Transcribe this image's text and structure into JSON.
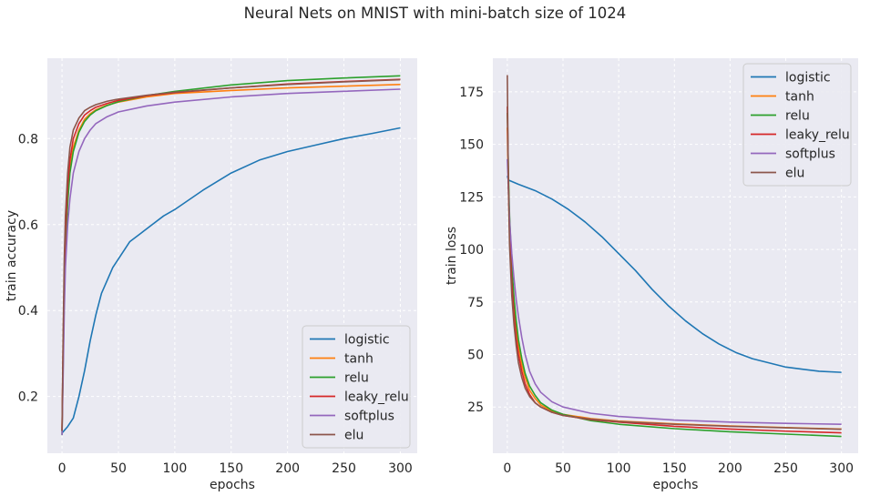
{
  "figure": {
    "title": "Neural Nets on MNIST with mini-batch size of 1024"
  },
  "colors": {
    "logistic": "#1f77b4",
    "tanh": "#ff7f0e",
    "relu": "#2ca02c",
    "leaky_relu": "#d62728",
    "softplus": "#9467bd",
    "elu": "#8c564b",
    "plot_background": "#eaeaf2",
    "grid": "#ffffff"
  },
  "chart_data": [
    {
      "type": "line",
      "title": "",
      "xlabel": "epochs",
      "ylabel": "train accuracy",
      "xlim": [
        -13,
        315
      ],
      "ylim": [
        0.068,
        0.987
      ],
      "xticks": [
        0,
        50,
        100,
        150,
        200,
        250,
        300
      ],
      "yticks": [
        0.2,
        0.4,
        0.6,
        0.8
      ],
      "ytick_labels": [
        "0.2",
        "0.4",
        "0.6",
        "0.8"
      ],
      "grid": true,
      "legend_position": "lower-right",
      "series": [
        {
          "name": "logistic",
          "x": [
            0,
            5,
            10,
            15,
            20,
            25,
            30,
            35,
            40,
            45,
            50,
            60,
            70,
            80,
            90,
            100,
            125,
            150,
            175,
            200,
            225,
            250,
            275,
            300
          ],
          "y": [
            0.115,
            0.13,
            0.15,
            0.2,
            0.26,
            0.33,
            0.39,
            0.44,
            0.47,
            0.5,
            0.52,
            0.56,
            0.58,
            0.6,
            0.62,
            0.635,
            0.68,
            0.72,
            0.75,
            0.77,
            0.785,
            0.8,
            0.812,
            0.825
          ]
        },
        {
          "name": "tanh",
          "x": [
            0,
            1,
            2,
            3,
            5,
            7,
            10,
            15,
            20,
            25,
            30,
            40,
            50,
            75,
            100,
            150,
            200,
            250,
            300
          ],
          "y": [
            0.12,
            0.3,
            0.45,
            0.55,
            0.66,
            0.73,
            0.78,
            0.82,
            0.845,
            0.858,
            0.867,
            0.878,
            0.885,
            0.897,
            0.905,
            0.912,
            0.918,
            0.922,
            0.926
          ]
        },
        {
          "name": "relu",
          "x": [
            0,
            1,
            2,
            3,
            5,
            7,
            10,
            15,
            20,
            25,
            30,
            40,
            50,
            75,
            100,
            150,
            200,
            250,
            300
          ],
          "y": [
            0.11,
            0.28,
            0.43,
            0.54,
            0.65,
            0.72,
            0.77,
            0.815,
            0.84,
            0.855,
            0.865,
            0.877,
            0.886,
            0.9,
            0.91,
            0.925,
            0.935,
            0.941,
            0.946
          ]
        },
        {
          "name": "leaky_relu",
          "x": [
            0,
            1,
            2,
            3,
            5,
            7,
            10,
            15,
            20,
            25,
            30,
            40,
            50,
            75,
            100,
            150,
            200,
            250,
            300
          ],
          "y": [
            0.12,
            0.32,
            0.48,
            0.58,
            0.69,
            0.75,
            0.8,
            0.835,
            0.855,
            0.865,
            0.873,
            0.882,
            0.889,
            0.9,
            0.907,
            0.918,
            0.927,
            0.933,
            0.938
          ]
        },
        {
          "name": "softplus",
          "x": [
            0,
            1,
            2,
            3,
            5,
            7,
            10,
            15,
            20,
            25,
            30,
            40,
            50,
            75,
            100,
            150,
            200,
            250,
            300
          ],
          "y": [
            0.11,
            0.25,
            0.4,
            0.5,
            0.6,
            0.66,
            0.72,
            0.77,
            0.8,
            0.82,
            0.835,
            0.851,
            0.862,
            0.876,
            0.885,
            0.897,
            0.905,
            0.91,
            0.915
          ]
        },
        {
          "name": "elu",
          "x": [
            0,
            1,
            2,
            3,
            5,
            7,
            10,
            15,
            20,
            25,
            30,
            40,
            50,
            75,
            100,
            150,
            200,
            250,
            300
          ],
          "y": [
            0.12,
            0.35,
            0.52,
            0.62,
            0.72,
            0.78,
            0.82,
            0.848,
            0.865,
            0.873,
            0.879,
            0.887,
            0.892,
            0.901,
            0.908,
            0.918,
            0.926,
            0.932,
            0.937
          ]
        }
      ]
    },
    {
      "type": "line",
      "title": "",
      "xlabel": "epochs",
      "ylabel": "train loss",
      "xlim": [
        -13,
        315
      ],
      "ylim": [
        3,
        191
      ],
      "xticks": [
        0,
        50,
        100,
        150,
        200,
        250,
        300
      ],
      "yticks": [
        25,
        50,
        75,
        100,
        125,
        150,
        175
      ],
      "ytick_labels": [
        "25",
        "50",
        "75",
        "100",
        "125",
        "150",
        "175"
      ],
      "grid": true,
      "legend_position": "upper-right",
      "series": [
        {
          "name": "logistic",
          "x": [
            0,
            1,
            10,
            25,
            40,
            55,
            70,
            85,
            100,
            115,
            130,
            145,
            160,
            175,
            190,
            205,
            220,
            235,
            250,
            265,
            280,
            300
          ],
          "y": [
            135,
            133,
            131,
            128,
            124,
            119,
            113,
            106,
            98,
            90,
            81,
            73,
            66,
            60,
            55,
            51,
            48,
            46,
            44,
            43,
            42,
            41.5
          ]
        },
        {
          "name": "tanh",
          "x": [
            0,
            1,
            2,
            4,
            6,
            8,
            10,
            13,
            16,
            20,
            25,
            30,
            40,
            50,
            75,
            100,
            150,
            200,
            250,
            300
          ],
          "y": [
            158,
            130,
            110,
            88,
            73,
            62,
            54,
            45,
            39,
            33,
            29,
            26,
            23,
            21.5,
            19.5,
            18.3,
            17,
            16,
            15.2,
            14.5
          ]
        },
        {
          "name": "relu",
          "x": [
            0,
            1,
            2,
            4,
            6,
            8,
            10,
            13,
            16,
            20,
            25,
            30,
            40,
            50,
            75,
            100,
            150,
            200,
            250,
            300
          ],
          "y": [
            165,
            136,
            116,
            92,
            77,
            66,
            57,
            48,
            41,
            35,
            30.5,
            27,
            23.5,
            21.5,
            18.5,
            16.8,
            14.7,
            13.2,
            12.1,
            11
          ]
        },
        {
          "name": "leaky_relu",
          "x": [
            0,
            1,
            2,
            4,
            6,
            8,
            10,
            13,
            16,
            20,
            25,
            30,
            40,
            50,
            75,
            100,
            150,
            200,
            250,
            300
          ],
          "y": [
            168,
            132,
            108,
            84,
            69,
            58,
            50,
            42,
            36,
            31,
            27,
            25,
            22.5,
            21,
            19,
            17.8,
            15.8,
            14.5,
            13.5,
            12.7
          ]
        },
        {
          "name": "softplus",
          "x": [
            0,
            1,
            2,
            4,
            6,
            8,
            10,
            13,
            16,
            20,
            25,
            30,
            40,
            50,
            75,
            100,
            150,
            200,
            250,
            300
          ],
          "y": [
            143,
            128,
            114,
            98,
            86,
            76,
            68,
            58,
            50,
            42,
            36,
            32,
            27.5,
            25,
            22,
            20.5,
            18.8,
            17.8,
            17.2,
            16.8
          ]
        },
        {
          "name": "elu",
          "x": [
            0,
            1,
            2,
            4,
            6,
            8,
            10,
            13,
            16,
            20,
            25,
            30,
            40,
            50,
            75,
            100,
            150,
            200,
            250,
            300
          ],
          "y": [
            183,
            128,
            102,
            78,
            64,
            54,
            46,
            39,
            34,
            30,
            27,
            25,
            22.5,
            21,
            19.2,
            18.1,
            16.8,
            15.8,
            15.1,
            14.4
          ]
        }
      ]
    }
  ]
}
